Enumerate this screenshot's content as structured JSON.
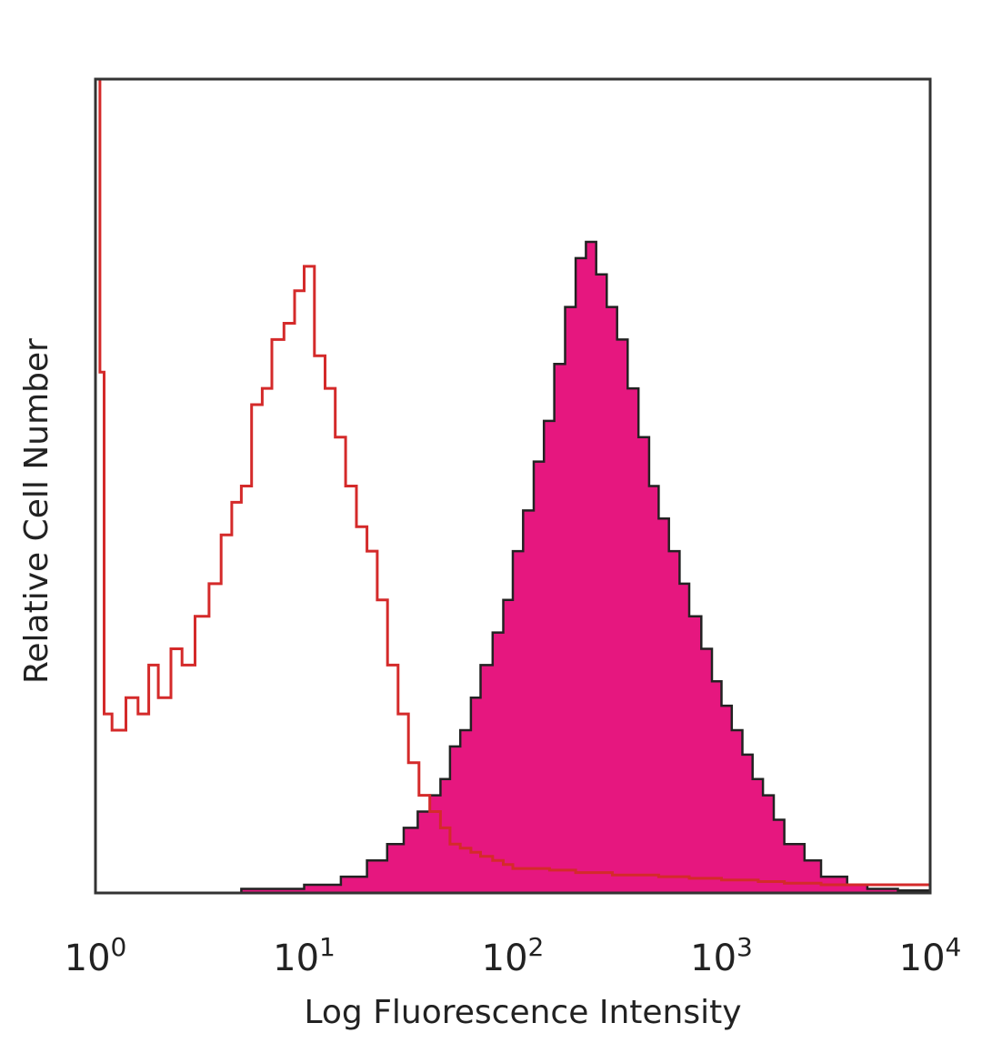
{
  "chart_data": {
    "type": "area",
    "xlabel": "Log Fluorescence Intensity",
    "ylabel": "Relative Cell Number",
    "x_scale": "log",
    "xlim": [
      1,
      10000
    ],
    "ylim": [
      0,
      1
    ],
    "grid": false,
    "x_ticks": [
      {
        "value": 1,
        "base": "10",
        "exp": "0"
      },
      {
        "value": 10,
        "base": "10",
        "exp": "1"
      },
      {
        "value": 100,
        "base": "10",
        "exp": "2"
      },
      {
        "value": 1000,
        "base": "10",
        "exp": "3"
      },
      {
        "value": 10000,
        "base": "10",
        "exp": "4"
      }
    ],
    "series": [
      {
        "style": "outline",
        "color": "#d42a2a",
        "x": [
          1.0,
          1.05,
          1.1,
          1.2,
          1.4,
          1.6,
          1.8,
          2.0,
          2.3,
          2.6,
          3.0,
          3.5,
          4.0,
          4.5,
          5.0,
          5.6,
          6.3,
          7.0,
          8.0,
          9.0,
          10.0,
          11.2,
          12.6,
          14.1,
          15.8,
          17.8,
          20.0,
          22.4,
          25.1,
          28.2,
          31.6,
          35.5,
          40.0,
          45.0,
          50.0,
          56.0,
          63.0,
          70.0,
          80.0,
          90.0,
          100,
          150,
          200,
          300,
          500,
          700,
          1000,
          1500,
          2000,
          3000,
          5000,
          7000,
          10000
        ],
        "y": [
          1.0,
          0.64,
          0.22,
          0.2,
          0.24,
          0.22,
          0.28,
          0.24,
          0.3,
          0.28,
          0.34,
          0.38,
          0.44,
          0.48,
          0.5,
          0.6,
          0.62,
          0.68,
          0.7,
          0.74,
          0.77,
          0.66,
          0.62,
          0.56,
          0.5,
          0.45,
          0.42,
          0.36,
          0.28,
          0.22,
          0.16,
          0.12,
          0.1,
          0.08,
          0.06,
          0.055,
          0.05,
          0.045,
          0.04,
          0.035,
          0.03,
          0.028,
          0.025,
          0.022,
          0.02,
          0.018,
          0.016,
          0.014,
          0.012,
          0.01,
          0.01,
          0.01,
          0.01
        ]
      },
      {
        "style": "filled",
        "color": "#e6177f",
        "edge_color": "#222222",
        "x": [
          1.0,
          5.0,
          10.0,
          15.0,
          20.0,
          25.0,
          30.0,
          35.0,
          40.0,
          45.0,
          50.0,
          56.0,
          63.0,
          70.0,
          80.0,
          90.0,
          100,
          112,
          126,
          141,
          158,
          178,
          200,
          224,
          251,
          282,
          316,
          355,
          400,
          450,
          500,
          560,
          630,
          700,
          800,
          900,
          1000,
          1120,
          1260,
          1410,
          1580,
          1780,
          2000,
          2500,
          3000,
          4000,
          5000,
          7000,
          10000
        ],
        "y": [
          0.0,
          0.005,
          0.01,
          0.02,
          0.04,
          0.06,
          0.08,
          0.1,
          0.12,
          0.14,
          0.18,
          0.2,
          0.24,
          0.28,
          0.32,
          0.36,
          0.42,
          0.47,
          0.53,
          0.58,
          0.65,
          0.72,
          0.78,
          0.8,
          0.76,
          0.72,
          0.68,
          0.62,
          0.56,
          0.5,
          0.46,
          0.42,
          0.38,
          0.34,
          0.3,
          0.26,
          0.23,
          0.2,
          0.17,
          0.14,
          0.12,
          0.09,
          0.06,
          0.04,
          0.02,
          0.01,
          0.005,
          0.003,
          0.0
        ]
      }
    ]
  }
}
